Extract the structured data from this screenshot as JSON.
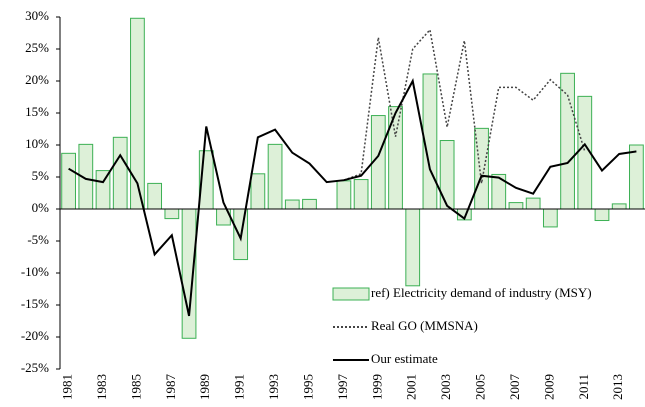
{
  "chart_data": {
    "type": "bar",
    "categories": [
      "1981",
      null,
      "1983",
      null,
      "1985",
      null,
      "1987",
      null,
      "1989",
      null,
      "1991",
      null,
      "1993",
      null,
      "1995",
      null,
      "1997",
      null,
      "1999",
      null,
      "2001",
      null,
      "2003",
      null,
      "2005",
      null,
      "2007",
      null,
      "2009",
      null,
      "2011",
      null,
      "2013",
      null
    ],
    "series": [
      {
        "name": "ref) Electricity demand of industry (MSY)",
        "type": "bar",
        "color": "#ddf0d8",
        "edge": "#3cb054",
        "values": [
          8.7,
          10.1,
          6.0,
          11.2,
          29.8,
          4.0,
          -1.5,
          -20.2,
          9.1,
          -2.5,
          -7.9,
          5.5,
          10.1,
          1.4,
          1.5,
          0,
          4.4,
          4.6,
          14.6,
          16.0,
          -12.0,
          21.1,
          10.7,
          -1.7,
          12.6,
          5.4,
          1.0,
          1.7,
          -2.8,
          21.2,
          17.6,
          -1.8,
          0.8,
          10.0
        ]
      },
      {
        "name": "Real GO (MMSNA)",
        "type": "line",
        "style": "dotted",
        "color": "#444444",
        "values": [
          null,
          null,
          null,
          null,
          null,
          null,
          null,
          null,
          null,
          null,
          null,
          null,
          null,
          null,
          null,
          null,
          4.5,
          5.5,
          26.8,
          11.3,
          25.0,
          28.0,
          12.8,
          26.3,
          4.0,
          19.0,
          19.0,
          17.0,
          20.2,
          17.8,
          9.0,
          null,
          null,
          null
        ]
      },
      {
        "name": "Our estimate",
        "type": "line",
        "style": "solid",
        "color": "#000000",
        "values": [
          6.3,
          4.7,
          4.2,
          8.4,
          4.0,
          -7.1,
          -4.1,
          -16.7,
          12.9,
          1.0,
          -4.6,
          11.2,
          12.4,
          8.8,
          7.1,
          4.2,
          4.5,
          5.2,
          8.3,
          15.0,
          20.0,
          6.2,
          0.5,
          -1.5,
          5.2,
          4.9,
          3.3,
          2.4,
          6.6,
          7.2,
          10.1,
          6.0,
          8.6,
          9.0
        ]
      }
    ],
    "ylim": [
      -25,
      30
    ],
    "yticks": [
      {
        "value": -25,
        "label": "-25%"
      },
      {
        "value": -20,
        "label": "-20%"
      },
      {
        "value": -15,
        "label": "-15%"
      },
      {
        "value": -10,
        "label": "-10%"
      },
      {
        "value": -5,
        "label": "-5%"
      },
      {
        "value": 0,
        "label": "0%"
      },
      {
        "value": 5,
        "label": "5%"
      },
      {
        "value": 10,
        "label": "10%"
      },
      {
        "value": 15,
        "label": "15%"
      },
      {
        "value": 20,
        "label": "20%"
      },
      {
        "value": 25,
        "label": "25%"
      },
      {
        "value": 30,
        "label": "30%"
      }
    ],
    "grid": false,
    "legend": "lower right"
  }
}
